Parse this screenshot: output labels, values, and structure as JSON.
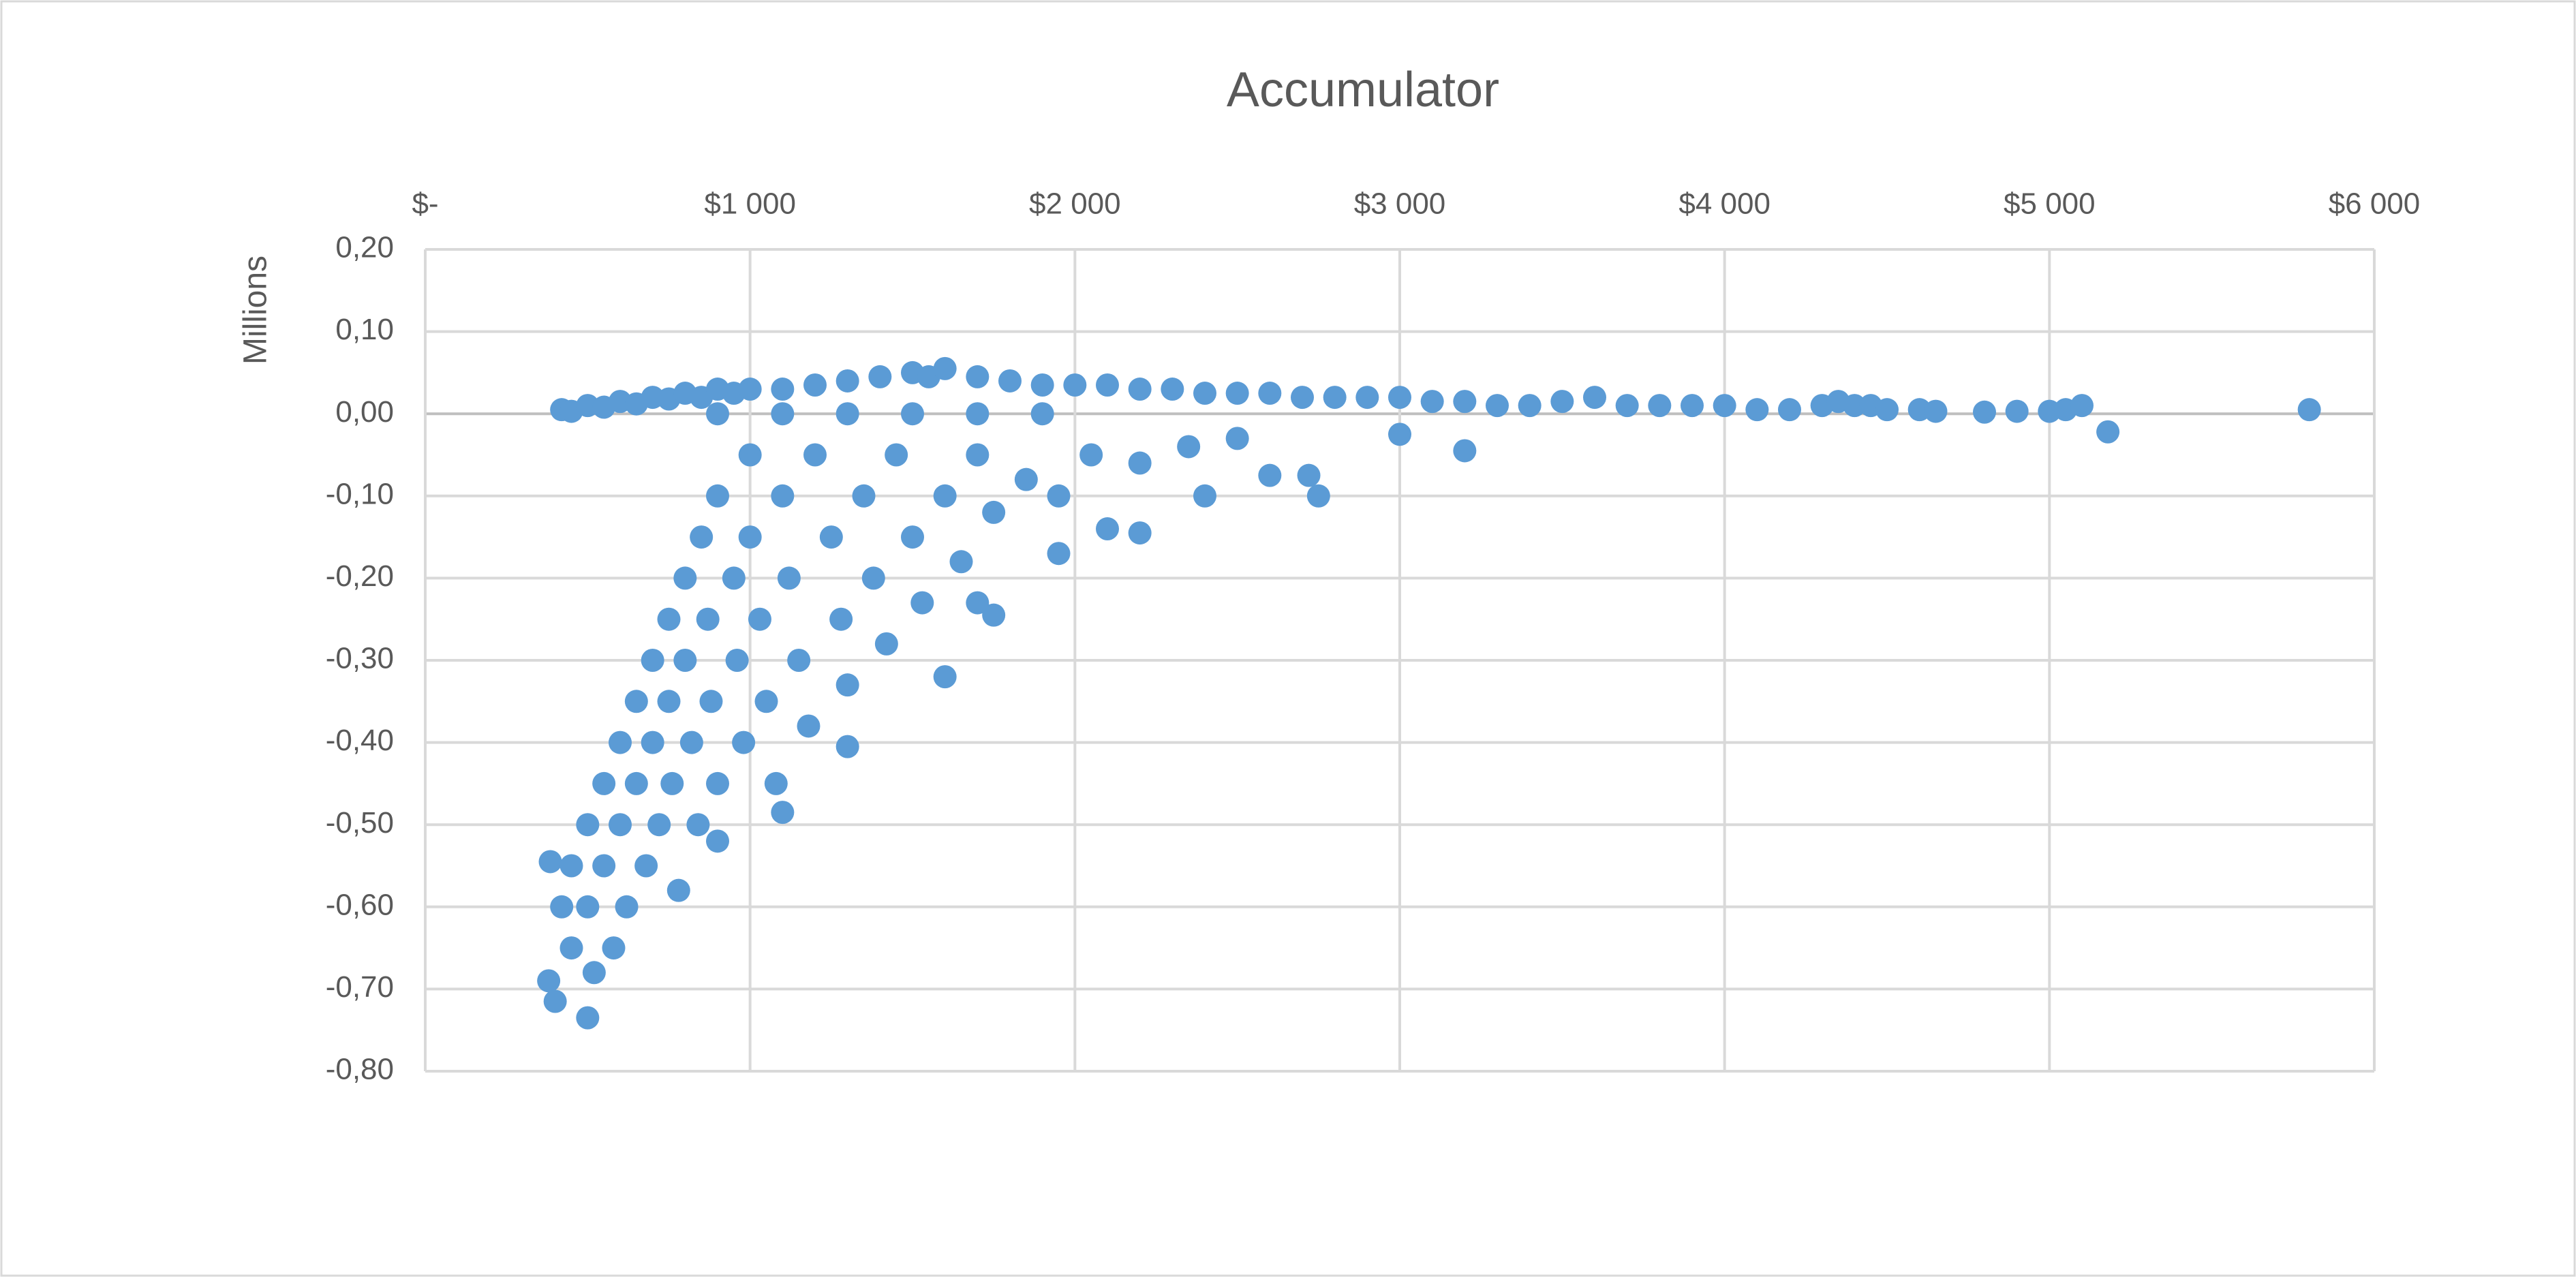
{
  "chart_data": {
    "type": "scatter",
    "title": "Accumulator",
    "y_axis_label": "Millions",
    "color": "#5b9bd5",
    "grid": true,
    "x_axis_position": "top",
    "xlim": [
      0,
      6000
    ],
    "xticks": [
      {
        "value": 0,
        "label": "$-"
      },
      {
        "value": 1000,
        "label": "$1 000"
      },
      {
        "value": 2000,
        "label": "$2 000"
      },
      {
        "value": 3000,
        "label": "$3 000"
      },
      {
        "value": 4000,
        "label": "$4 000"
      },
      {
        "value": 5000,
        "label": "$5 000"
      },
      {
        "value": 6000,
        "label": "$6 000"
      }
    ],
    "ylim": [
      -0.8,
      0.2
    ],
    "yticks": [
      {
        "value": 0.2,
        "label": "0,20"
      },
      {
        "value": 0.1,
        "label": "0,10"
      },
      {
        "value": 0,
        "label": "0,00"
      },
      {
        "value": -0.1,
        "label": "-0,10"
      },
      {
        "value": -0.2,
        "label": "-0,20"
      },
      {
        "value": -0.3,
        "label": "-0,30"
      },
      {
        "value": -0.4,
        "label": "-0,40"
      },
      {
        "value": -0.5,
        "label": "-0,50"
      },
      {
        "value": -0.6,
        "label": "-0,60"
      },
      {
        "value": -0.7,
        "label": "-0,70"
      },
      {
        "value": -0.8,
        "label": "-0,80"
      }
    ],
    "x": [
      420,
      450,
      500,
      550,
      600,
      650,
      700,
      750,
      800,
      850,
      900,
      950,
      1000,
      1100,
      1200,
      1300,
      1400,
      1500,
      1550,
      1600,
      1700,
      1800,
      1900,
      2000,
      2100,
      2200,
      2300,
      2400,
      2500,
      2600,
      2700,
      2800,
      2900,
      3000,
      3100,
      3200,
      3300,
      3400,
      3500,
      3600,
      3700,
      3800,
      3900,
      4000,
      4100,
      4200,
      4300,
      4350,
      4400,
      4450,
      4500,
      4600,
      4650,
      4800,
      4900,
      5000,
      5050,
      5100,
      5180,
      5800,
      3200,
      3000,
      2750,
      2720,
      2600,
      2400,
      2200,
      2100,
      1950,
      1750,
      1700,
      1600,
      1300,
      1100,
      900,
      500,
      380,
      400,
      385,
      420,
      450,
      450,
      500,
      500,
      520,
      550,
      550,
      580,
      600,
      600,
      620,
      650,
      650,
      680,
      700,
      700,
      720,
      750,
      750,
      760,
      780,
      800,
      800,
      820,
      840,
      850,
      870,
      880,
      900,
      900,
      950,
      960,
      980,
      1000,
      1000,
      1030,
      1050,
      1080,
      1100,
      1120,
      1150,
      1180,
      1200,
      1250,
      1280,
      1300,
      1350,
      1380,
      1420,
      1450,
      1500,
      1530,
      1600,
      1650,
      1700,
      1750,
      1850,
      1950,
      2050,
      2200,
      2350,
      2500,
      1100,
      1300,
      1500,
      1700,
      1900,
      900
    ],
    "y": [
      0.005,
      0.003,
      0.01,
      0.008,
      0.015,
      0.012,
      0.02,
      0.018,
      0.025,
      0.02,
      0.03,
      0.025,
      0.03,
      0.03,
      0.035,
      0.04,
      0.045,
      0.05,
      0.045,
      0.055,
      0.045,
      0.04,
      0.035,
      0.035,
      0.035,
      0.03,
      0.03,
      0.025,
      0.025,
      0.025,
      0.02,
      0.02,
      0.02,
      0.02,
      0.015,
      0.015,
      0.01,
      0.01,
      0.015,
      0.02,
      0.01,
      0.01,
      0.01,
      0.01,
      0.005,
      0.005,
      0.01,
      0.015,
      0.01,
      0.01,
      0.005,
      0.005,
      0.003,
      0.002,
      0.003,
      0.003,
      0.005,
      0.01,
      -0.022,
      0.005,
      -0.045,
      -0.025,
      -0.1,
      -0.075,
      -0.075,
      -0.1,
      -0.145,
      -0.14,
      -0.17,
      -0.245,
      -0.23,
      -0.32,
      -0.405,
      -0.485,
      -0.52,
      -0.735,
      -0.69,
      -0.715,
      -0.545,
      -0.6,
      -0.55,
      -0.65,
      -0.5,
      -0.6,
      -0.68,
      -0.45,
      -0.55,
      -0.65,
      -0.4,
      -0.5,
      -0.6,
      -0.35,
      -0.45,
      -0.55,
      -0.3,
      -0.4,
      -0.5,
      -0.25,
      -0.35,
      -0.45,
      -0.58,
      -0.2,
      -0.3,
      -0.4,
      -0.5,
      -0.15,
      -0.25,
      -0.35,
      -0.45,
      -0.1,
      -0.2,
      -0.3,
      -0.4,
      -0.05,
      -0.15,
      -0.25,
      -0.35,
      -0.45,
      -0.1,
      -0.2,
      -0.3,
      -0.38,
      -0.05,
      -0.15,
      -0.25,
      -0.33,
      -0.1,
      -0.2,
      -0.28,
      -0.05,
      -0.15,
      -0.23,
      -0.1,
      -0.18,
      -0.05,
      -0.12,
      -0.08,
      -0.1,
      -0.05,
      -0.06,
      -0.04,
      -0.03,
      0.0,
      0.0,
      0.0,
      0.0,
      0.0,
      0.0
    ]
  }
}
